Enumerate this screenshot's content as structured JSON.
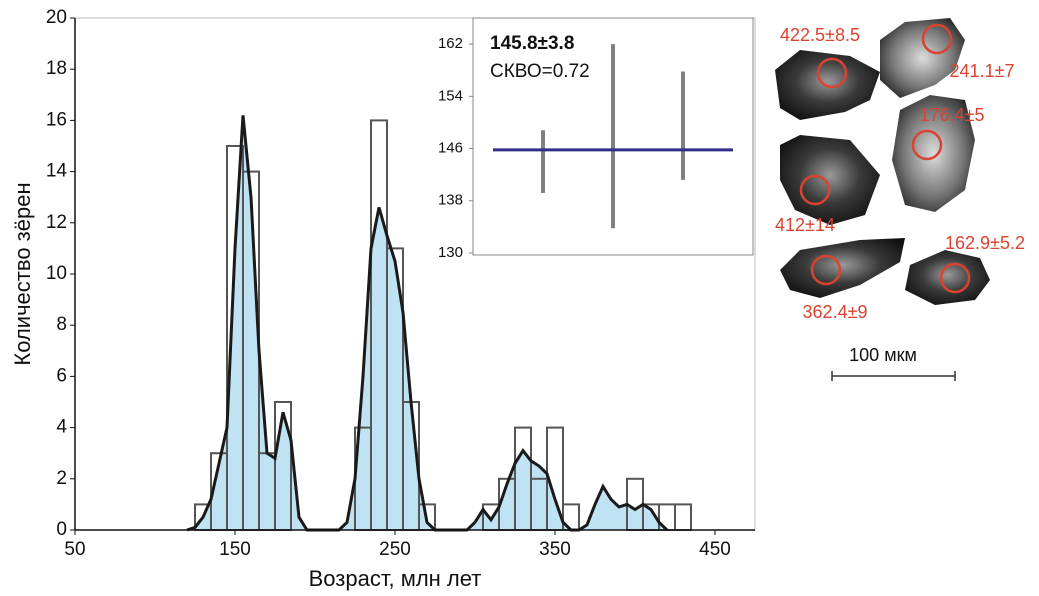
{
  "chart_data": [
    {
      "type": "histogram",
      "xlabel": "Возраст, млн лет",
      "ylabel": "Количество зёрен",
      "bins": [
        125,
        135,
        145,
        155,
        165,
        175,
        185,
        195,
        205,
        215,
        225,
        235,
        245,
        255,
        265,
        275,
        285,
        295,
        305,
        315,
        325,
        335,
        345,
        355,
        365,
        375,
        385,
        395,
        405,
        415,
        425,
        435
      ],
      "counts": [
        1,
        3,
        15,
        14,
        3,
        5,
        0,
        0,
        0,
        0,
        4,
        16,
        11,
        5,
        1,
        0,
        0,
        0,
        1,
        2,
        4,
        2,
        4,
        1,
        0,
        0,
        0,
        2,
        1,
        1,
        1
      ],
      "kde": {
        "x": [
          120,
          125,
          130,
          135,
          140,
          145,
          150,
          155,
          160,
          165,
          170,
          175,
          180,
          185,
          190,
          195,
          215,
          220,
          225,
          230,
          235,
          240,
          245,
          250,
          255,
          260,
          265,
          270,
          275,
          295,
          300,
          305,
          310,
          315,
          320,
          325,
          330,
          335,
          340,
          345,
          350,
          355,
          360,
          365,
          370,
          375,
          380,
          385,
          390,
          395,
          400,
          405,
          410,
          415,
          420
        ],
        "values": [
          0,
          0.1,
          0.5,
          1.2,
          2.6,
          4,
          11,
          16.2,
          13,
          7,
          3,
          2.8,
          4.6,
          3.5,
          0.5,
          0,
          0,
          0.3,
          2,
          6,
          11,
          12.6,
          11.5,
          10.5,
          8.5,
          5,
          2,
          0.3,
          0,
          0,
          0.3,
          0.8,
          0.4,
          0.9,
          1.8,
          2.6,
          3.1,
          2.7,
          2.5,
          2.2,
          1.2,
          0.3,
          0,
          0,
          0.2,
          1,
          1.7,
          1.2,
          0.9,
          1,
          0.8,
          1,
          0.8,
          0.3,
          0
        ]
      },
      "bar_color": "#555555",
      "kde_fill": "#bfe3f2",
      "kde_color": "#1a1a1a",
      "xlim": [
        50,
        475
      ],
      "ylim": [
        0,
        20
      ],
      "xticks": [
        50,
        150,
        250,
        350,
        450
      ],
      "yticks": [
        0,
        2,
        4,
        6,
        8,
        10,
        12,
        14,
        16,
        18,
        20
      ]
    },
    {
      "type": "errorbar",
      "title": "145.8±3.8",
      "subtitle": "СКВО=0.72",
      "categories": [
        null,
        null,
        null
      ],
      "values": [
        144,
        147.9,
        149.5
      ],
      "errors": [
        4.8,
        14.1,
        8.3
      ],
      "mean": 145.8,
      "mean_color": "#2e2e8c",
      "color": "#808080",
      "ylim": [
        130,
        166
      ],
      "yticks": [
        130,
        138,
        146,
        154,
        162
      ]
    }
  ],
  "grain_labels": [
    "422.5±8.5",
    "241.1±7",
    "176.4±5",
    "412±14",
    "162.9±5.2",
    "362.4±9"
  ],
  "scale_bar_label": "100 мкм"
}
